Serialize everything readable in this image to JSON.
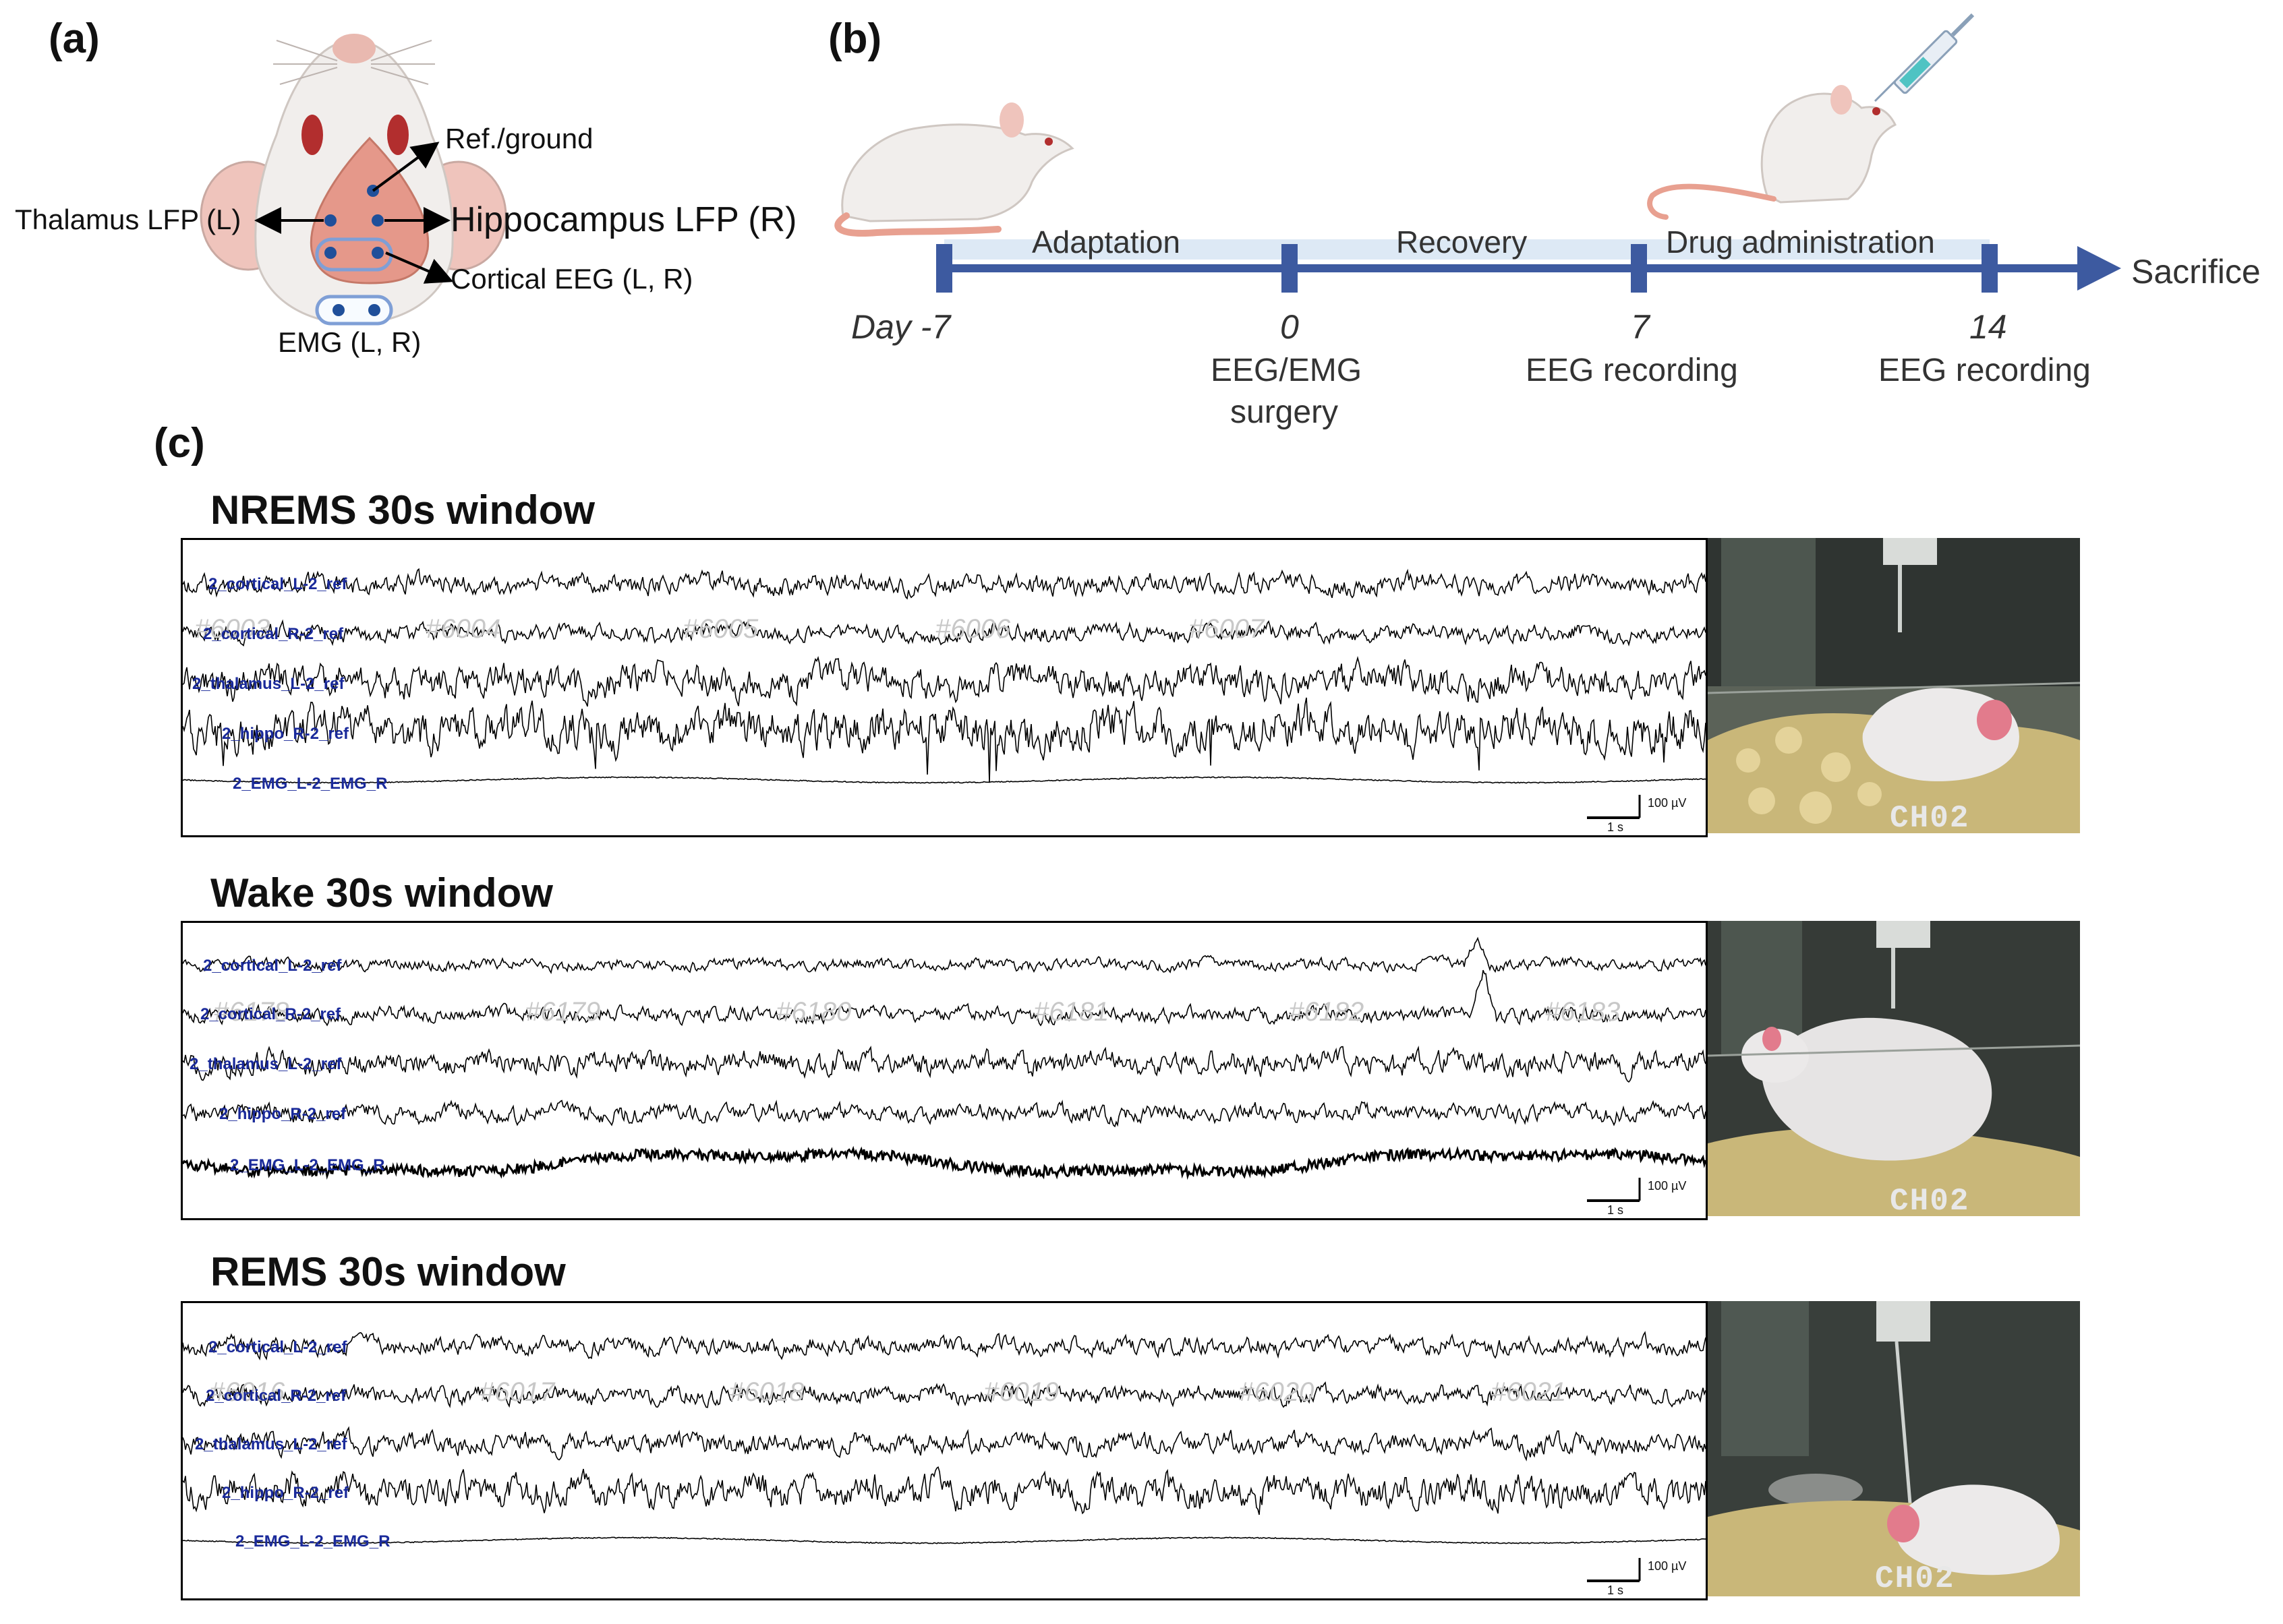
{
  "panels": {
    "a": {
      "label": "(a)",
      "electrodes": {
        "ref": "Ref./ground",
        "thalamus": "Thalamus LFP (L)",
        "hippocampus": "Hippocampus LFP (R)",
        "cortical": "Cortical EEG (L, R)",
        "emg": "EMG (L, R)"
      }
    },
    "b": {
      "label": "(b)",
      "phases": [
        "Adaptation",
        "Recovery",
        "Drug administration"
      ],
      "end_label": "Sacrifice",
      "days": [
        "Day -7",
        "0",
        "7",
        "14"
      ],
      "events": [
        {
          "day": "0",
          "lines": [
            "EEG/EMG",
            "surgery"
          ]
        },
        {
          "day": "7",
          "lines": [
            "EEG recording"
          ]
        },
        {
          "day": "14",
          "lines": [
            "EEG recording"
          ]
        }
      ]
    },
    "c": {
      "label": "(c)",
      "channel_labels": [
        "2_cortical_L-2_ref",
        "2_cortical_R-2_ref",
        "2_thalamus_L-2_ref",
        "2_hippo_R-2_ref",
        "2_EMG_L-2_EMG_R"
      ],
      "scale_bar": {
        "amplitude": "100 µV",
        "time": "1 s"
      },
      "camera_label": "CH02",
      "windows": [
        {
          "title": "NREMS 30s window",
          "epochs": [
            "#6003",
            "#6004",
            "#6005",
            "#6006",
            "#6007"
          ]
        },
        {
          "title": "Wake 30s window",
          "epochs": [
            "#6178",
            "#6179",
            "#6180",
            "#6181",
            "#6182",
            "#6183"
          ]
        },
        {
          "title": "REMS 30s window",
          "epochs": [
            "#6016",
            "#6017",
            "#6018",
            "#6019",
            "#6020",
            "#6021"
          ]
        }
      ]
    }
  },
  "colors": {
    "timeline": "#3d5aa0",
    "phase_band": "#dde9f5",
    "channel_label": "#1a2a9a",
    "rat_skin": "#e8a090",
    "electrode": "#1f4f9a"
  }
}
